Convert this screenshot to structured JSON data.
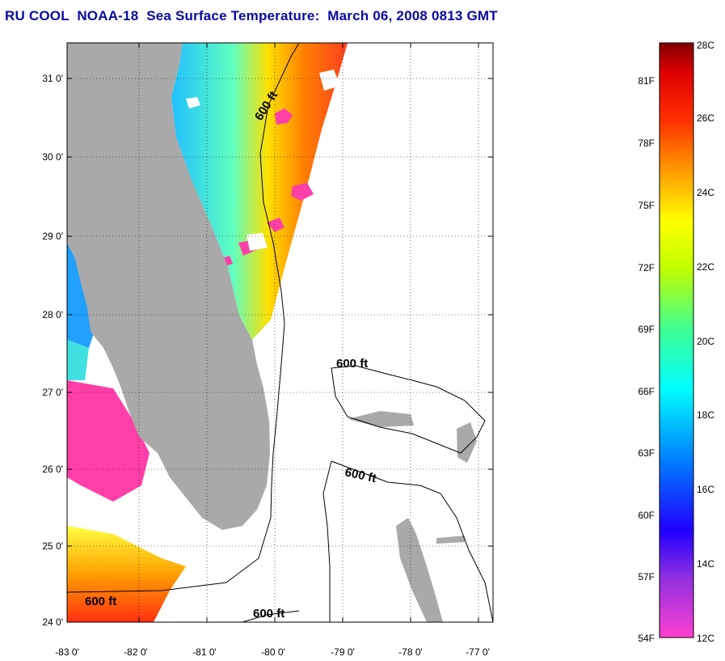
{
  "title": "RU COOL  NOAA-18  Sea Surface Temperature:  March 06, 2008 0813 GMT",
  "map": {
    "lat_ticks": [
      "31 0'",
      "30 0'",
      "29 0'",
      "28 0'",
      "27 0'",
      "26 0'",
      "25 0'",
      "24 0'"
    ],
    "lon_ticks": [
      "-83 0'",
      "-82 0'",
      "-81 0'",
      "-80 0'",
      "-79 0'",
      "-78 0'",
      "-77 0'"
    ],
    "contour_labels": [
      "600 ft",
      "600 ft",
      "600 ft",
      "600 ft",
      "600 ft"
    ],
    "colors": {
      "land": "#a9a9a9",
      "background": "#ffffff",
      "cloud_mask": "#ff3fa8"
    }
  },
  "colorbar": {
    "fahrenheit_labels": [
      "81F",
      "78F",
      "75F",
      "72F",
      "69F",
      "66F",
      "63F",
      "60F",
      "57F",
      "54F"
    ],
    "celsius_labels": [
      "28C",
      "26C",
      "24C",
      "22C",
      "20C",
      "18C",
      "16C",
      "14C",
      "12C"
    ],
    "colors": [
      "#ff40d0",
      "#9030e0",
      "#0000ff",
      "#00a0ff",
      "#00ffff",
      "#40ff80",
      "#c0ff00",
      "#ffff00",
      "#ffa000",
      "#ff4000",
      "#ff0000",
      "#800000"
    ]
  }
}
